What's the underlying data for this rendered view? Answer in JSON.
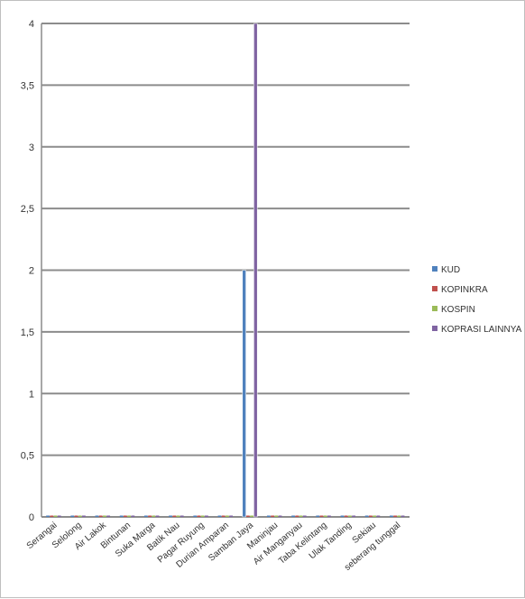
{
  "watermark": "",
  "chart_data": {
    "type": "bar",
    "title": "",
    "xlabel": "",
    "ylabel": "",
    "ylim": [
      0,
      4
    ],
    "yticks": [
      "0",
      "0,5",
      "1",
      "1,5",
      "2",
      "2,5",
      "3",
      "3,5",
      "4"
    ],
    "grid": true,
    "legend_position": "right",
    "categories": [
      "Serangai",
      "Selolong",
      "Air Lakok",
      "Bintunan",
      "Suka Marga",
      "Batik Nau",
      "Pagar Ruyung",
      "Durian Amparan",
      "Samban Jaya",
      "Maninjau",
      "Air Manganyau",
      "Taba Kelintang",
      "Ulak Tanding",
      "Sekiau",
      "seberang tunggal"
    ],
    "series": [
      {
        "name": "KUD",
        "color": "#4f81bd",
        "values": [
          0,
          0,
          0,
          0,
          0,
          0,
          0,
          0,
          2,
          0,
          0,
          0,
          0,
          0,
          0
        ]
      },
      {
        "name": "KOPINKRA",
        "color": "#c0504d",
        "values": [
          0,
          0,
          0,
          0,
          0,
          0,
          0,
          0,
          0,
          0,
          0,
          0,
          0,
          0,
          0
        ]
      },
      {
        "name": "KOSPIN",
        "color": "#9bbb59",
        "values": [
          0,
          0,
          0,
          0,
          0,
          0,
          0,
          0,
          0,
          0,
          0,
          0,
          0,
          0,
          0
        ]
      },
      {
        "name": "KOPRASI LAINNYA",
        "color": "#8064a2",
        "values": [
          0,
          0,
          0,
          0,
          0,
          0,
          0,
          0,
          4,
          0,
          0,
          0,
          0,
          0,
          0
        ]
      }
    ]
  }
}
